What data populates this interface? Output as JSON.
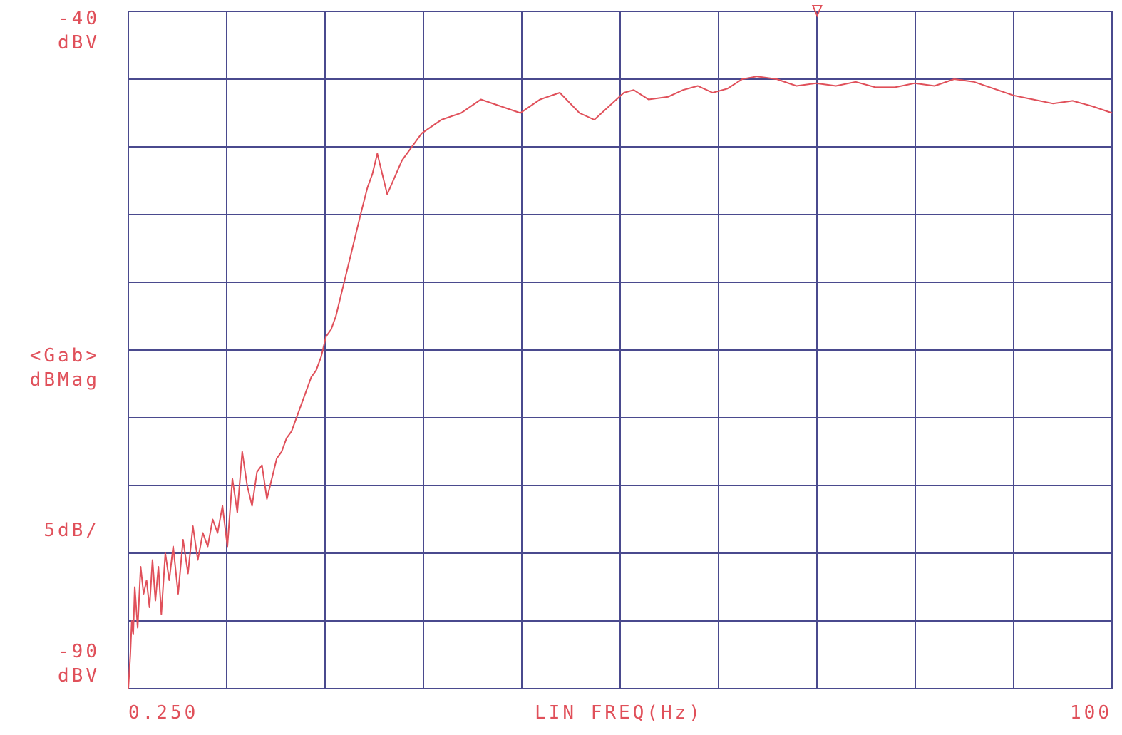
{
  "chart_data": {
    "type": "line",
    "title": "",
    "y_top_label": "-40",
    "y_top_unit": "dBV",
    "y_bottom_label": "-90",
    "y_bottom_unit": "dBV",
    "y_measure_label": "<Gab>",
    "y_measure_unit": "dBMag",
    "y_scale_label": "5dB/",
    "x_start_label": "0.250",
    "x_end_label": "100",
    "xlabel": "LIN FREQ(Hz)",
    "xlim": [
      0.25,
      100
    ],
    "ylim": [
      -90,
      -40
    ],
    "grid": true,
    "grid_divisions": {
      "x": 10,
      "y": 10
    },
    "marker_x": 70.1,
    "colors": {
      "trace": "#e0505a",
      "grid": "#4a4a8e",
      "text": "#e0505a"
    },
    "series": [
      {
        "x": [
          0.25,
          0.45,
          0.6,
          0.75,
          0.9,
          1.2,
          1.5,
          1.8,
          2.1,
          2.4,
          2.7,
          3.0,
          3.3,
          3.6,
          4.0,
          4.4,
          4.8,
          5.3,
          5.8,
          6.3,
          6.8,
          7.3,
          7.8,
          8.3,
          8.8,
          9.3,
          9.8,
          10.3,
          10.8,
          11.3,
          11.8,
          12.3,
          12.8,
          13.3,
          13.8,
          14.3,
          14.8,
          15.3,
          15.8,
          16.3,
          16.8,
          17.3,
          17.8,
          18.3,
          18.8,
          19.3,
          19.8,
          20.3,
          20.8,
          21.3,
          21.8,
          22.3,
          22.8,
          23.3,
          23.8,
          24.5,
          25.0,
          25.5,
          26.5,
          28.0,
          30.0,
          32.0,
          34.0,
          36.0,
          38.0,
          40.0,
          42.0,
          44.0,
          46.0,
          47.5,
          49.0,
          50.5,
          51.5,
          53.0,
          55.0,
          56.5,
          58.0,
          59.5,
          61.0,
          62.5,
          64.0,
          66.0,
          68.0,
          70.0,
          72.0,
          74.0,
          76.0,
          78.0,
          80.0,
          82.0,
          84.0,
          86.0,
          88.0,
          90.0,
          92.0,
          94.0,
          96.0,
          98.0,
          100.0
        ],
        "y": [
          -90.0,
          -87.5,
          -85.0,
          -86.0,
          -82.5,
          -85.5,
          -81.0,
          -83.0,
          -82.0,
          -84.0,
          -80.5,
          -83.5,
          -81.0,
          -84.5,
          -80.0,
          -82.0,
          -79.5,
          -83.0,
          -79.0,
          -81.5,
          -78.0,
          -80.5,
          -78.5,
          -79.5,
          -77.5,
          -78.5,
          -76.5,
          -79.5,
          -74.5,
          -77.0,
          -72.5,
          -75.0,
          -76.5,
          -74.0,
          -73.5,
          -76.0,
          -74.5,
          -73.0,
          -72.5,
          -71.5,
          -71.0,
          -70.0,
          -69.0,
          -68.0,
          -67.0,
          -66.5,
          -65.5,
          -64.0,
          -63.5,
          -62.5,
          -61.0,
          -59.5,
          -58.0,
          -56.5,
          -55.0,
          -53.0,
          -52.0,
          -50.5,
          -53.5,
          -51.0,
          -49.0,
          -48.0,
          -47.5,
          -46.5,
          -47.0,
          -47.5,
          -46.5,
          -46.0,
          -47.5,
          -48.0,
          -47.0,
          -46.0,
          -45.8,
          -46.5,
          -46.3,
          -45.8,
          -45.5,
          -46.0,
          -45.7,
          -45.0,
          -44.8,
          -45.0,
          -45.5,
          -45.3,
          -45.5,
          -45.2,
          -45.6,
          -45.6,
          -45.3,
          -45.5,
          -45.0,
          -45.2,
          -45.7,
          -46.2,
          -46.5,
          -46.8,
          -46.6,
          -47.0,
          -47.5
        ]
      }
    ]
  }
}
